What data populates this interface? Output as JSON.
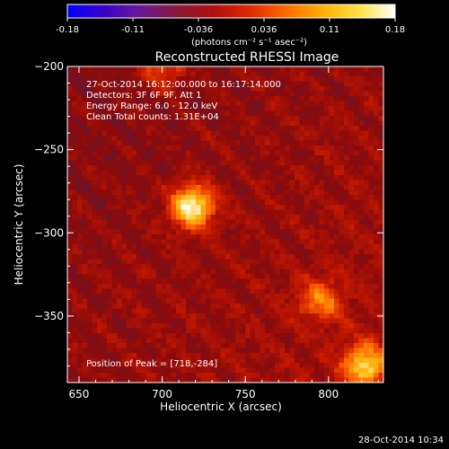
{
  "chart_data": {
    "type": "heatmap",
    "title": "Reconstructed RHESSI Image",
    "xlabel": "Heliocentric X (arcsec)",
    "ylabel": "Heliocentric Y (arcsec)",
    "xlim": [
      643,
      833
    ],
    "ylim": [
      -390,
      -200
    ],
    "xticks": [
      650,
      700,
      750,
      800
    ],
    "yticks": [
      -200,
      -250,
      -300,
      -350
    ],
    "info_lines": [
      "27-Oct-2014 16:12:00.000 to 16:17:14.000",
      "Detectors: 3F 6F 9F, Att 1",
      "Energy Range: 6.0 - 12.0 keV",
      "Clean     Total counts: 1.31E+04"
    ],
    "peak_label": "Position of Peak = [718,-284]",
    "peak": [
      718,
      -284
    ],
    "sources": [
      {
        "x": 718,
        "y": -284,
        "value": 0.18
      },
      {
        "x": 822,
        "y": -380,
        "value": 0.14
      },
      {
        "x": 795,
        "y": -340,
        "value": 0.09
      },
      {
        "x": 700,
        "y": -200,
        "value": 0.08
      }
    ],
    "colorbar": {
      "min": -0.18,
      "max": 0.18,
      "ticks": [
        "-0.18",
        "-0.11",
        "-0.036",
        "0.036",
        "0.11",
        "0.18"
      ],
      "unit_label": "(photons cm⁻² s⁻¹ asec⁻²)",
      "colormap": [
        "#0000ff",
        "#3a00c8",
        "#6a1a9a",
        "#8a1a3a",
        "#b01010",
        "#e02800",
        "#ff6a00",
        "#ffb000",
        "#ffe040",
        "#ffffff"
      ]
    }
  },
  "footer": {
    "timestamp": "28-Oct-2014 10:34"
  }
}
